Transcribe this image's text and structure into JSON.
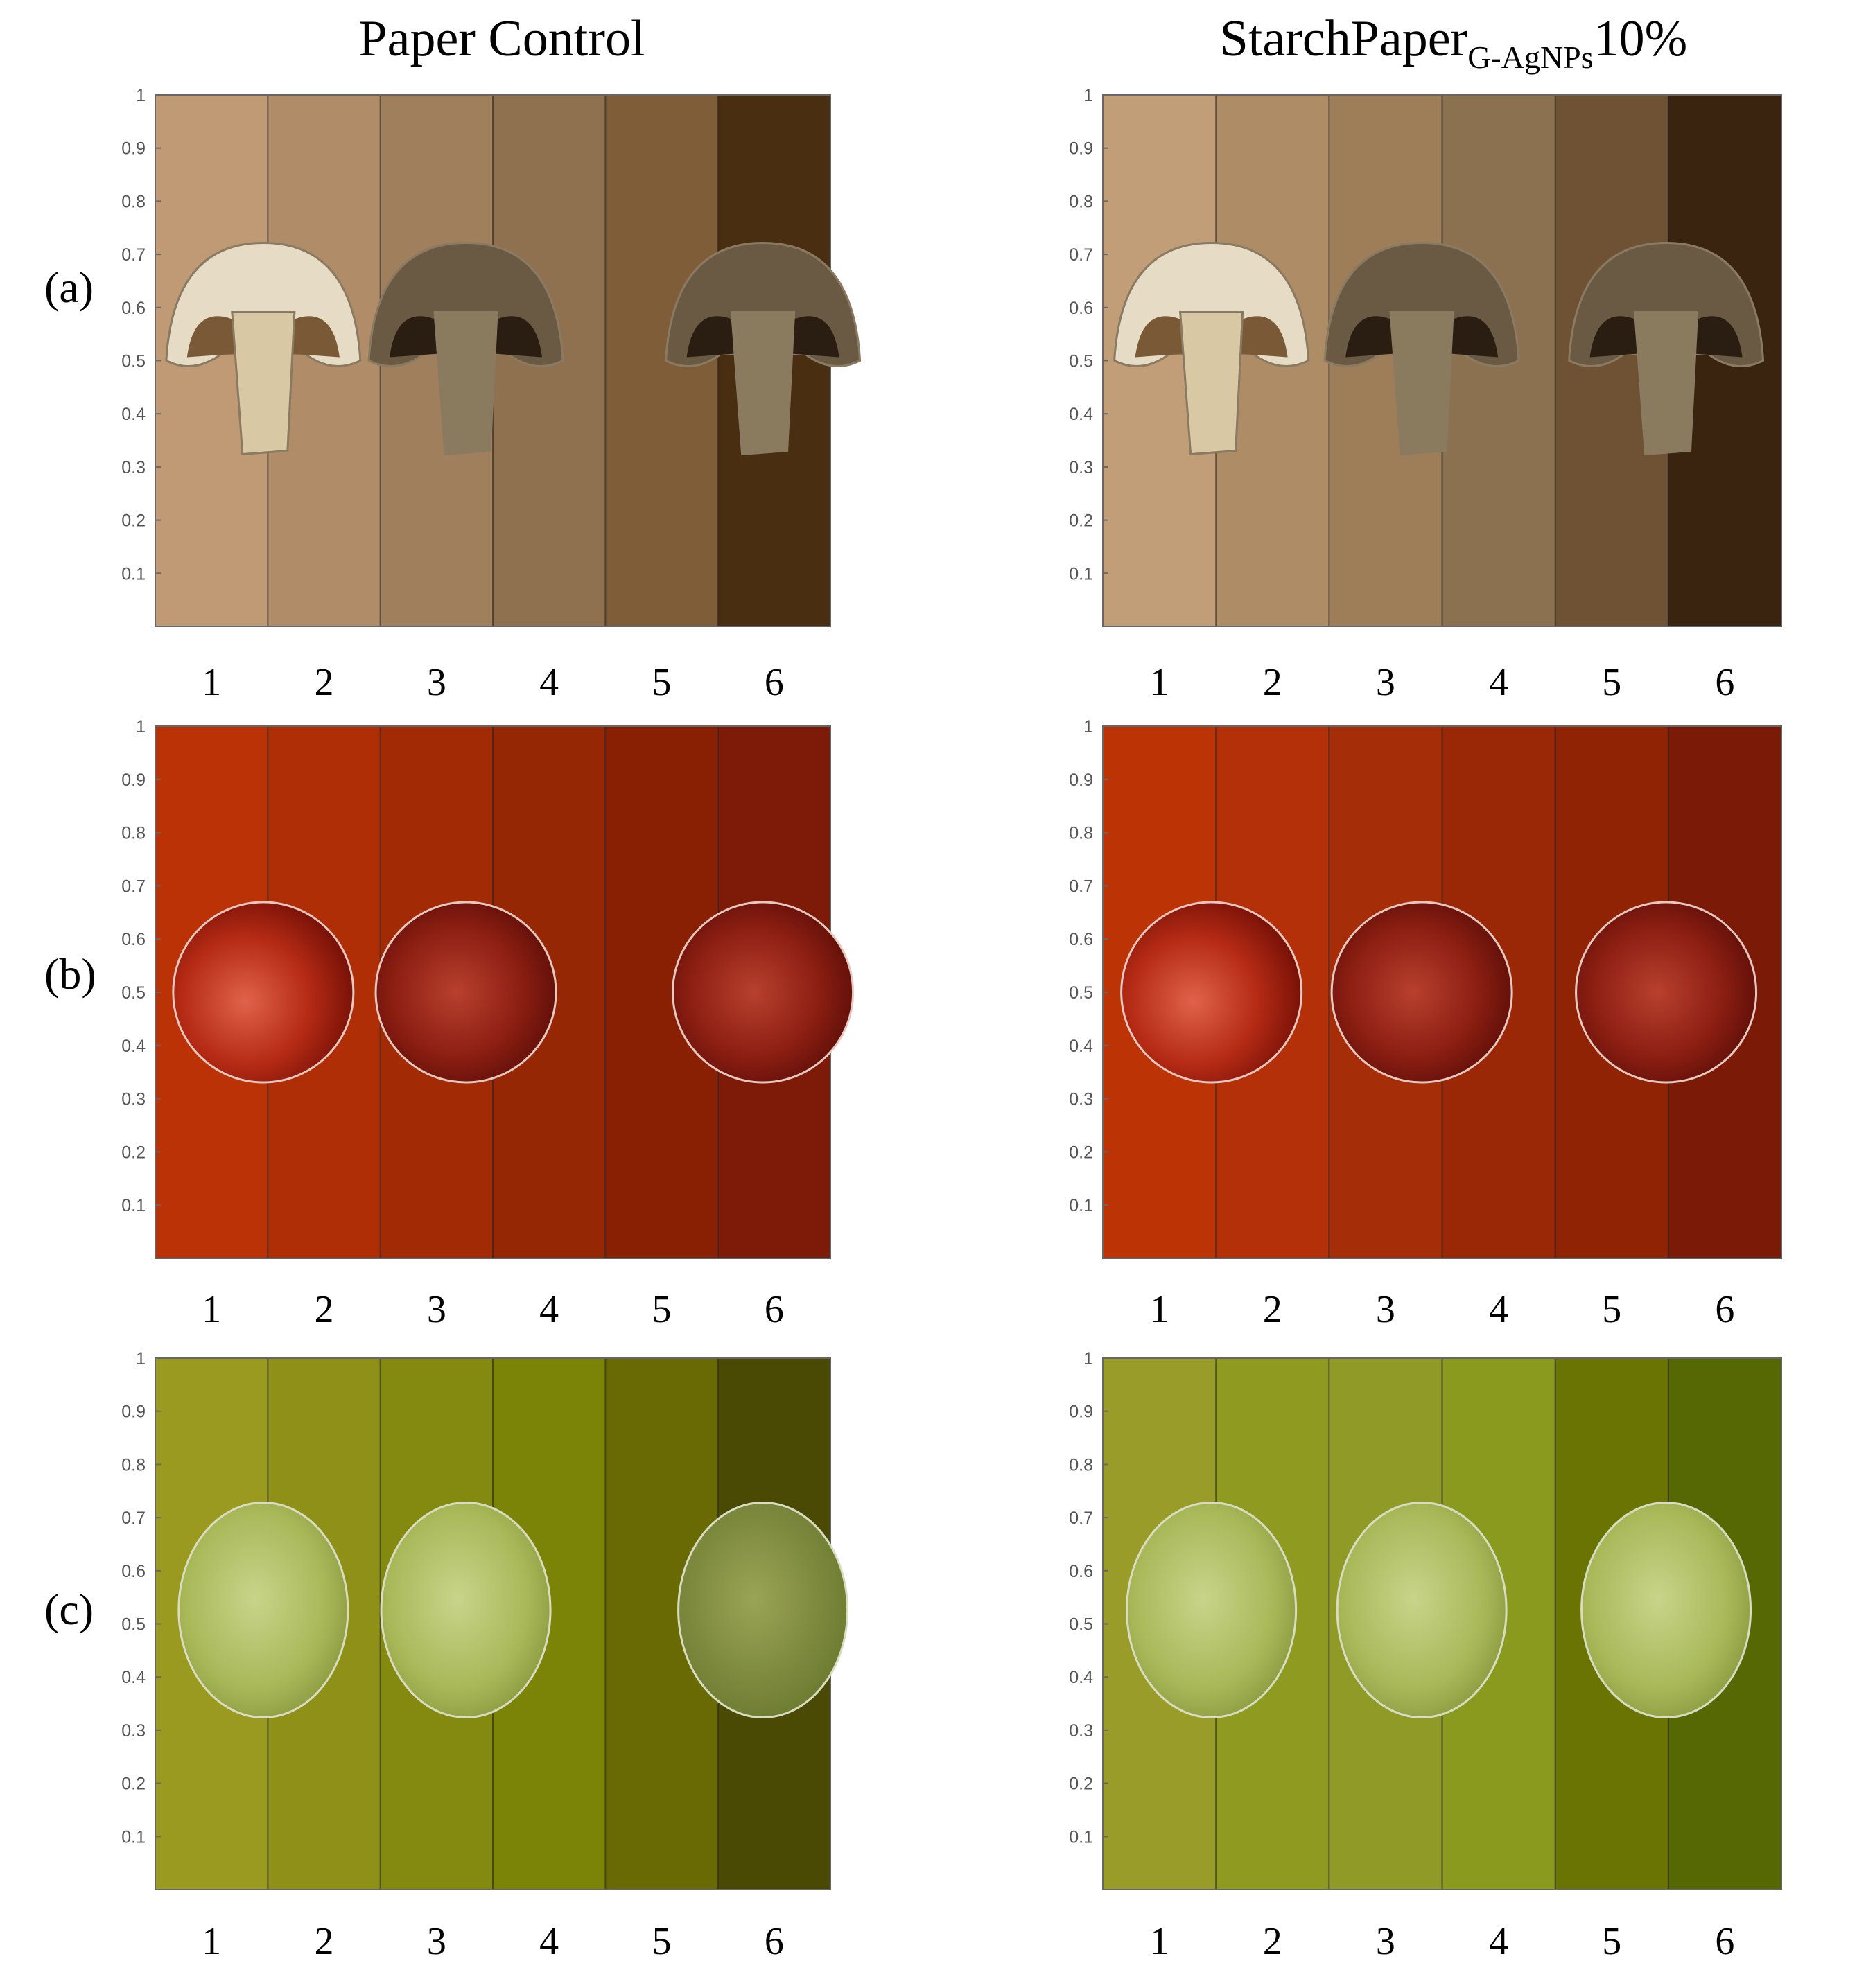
{
  "columns": [
    {
      "title": "Paper Control"
    },
    {
      "title": {
        "main": "StarchPaper",
        "subscript": "G-AgNPs",
        "suffix": "10%"
      }
    }
  ],
  "yticks": [
    0.1,
    0.2,
    0.3,
    0.4,
    0.5,
    0.6,
    0.7,
    0.8,
    0.9,
    1
  ],
  "categories": [
    "1",
    "2",
    "3",
    "4",
    "5",
    "6"
  ],
  "rows": [
    {
      "label": "(a)",
      "colors": [
        [
          "#c09a74",
          "#b08c68",
          "#a07f5c",
          "#8f7150",
          "#7f5d38",
          "#4a2e12"
        ],
        [
          "#c29e78",
          "#ae8c66",
          "#9d7e58",
          "#8c7150",
          "#6e5233",
          "#3a2410"
        ]
      ]
    },
    {
      "label": "(b)",
      "colors": [
        [
          "#bb3206",
          "#b02e06",
          "#a22a05",
          "#962705",
          "#891f03",
          "#7d1b08"
        ],
        [
          "#bc3406",
          "#b33008",
          "#a52d07",
          "#9a2806",
          "#8f2303",
          "#7a1a07"
        ]
      ]
    },
    {
      "label": "(c)",
      "colors": [
        [
          "#9a9a20",
          "#8e9018",
          "#848a10",
          "#7c8408",
          "#6a6a04",
          "#4a4a04"
        ],
        [
          "#9a9c2a",
          "#8e9a20",
          "#909a26",
          "#8a9a1e",
          "#6a7402",
          "#566804"
        ]
      ]
    }
  ]
}
